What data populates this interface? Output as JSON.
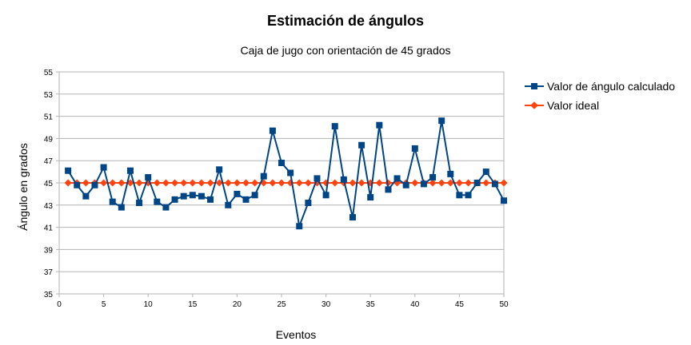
{
  "chart_data": {
    "type": "line",
    "title": "Estimación de ángulos",
    "subtitle": "Caja de jugo con orientación de 45 grados",
    "xlabel": "Eventos",
    "ylabel": "Ángulo en grados",
    "xlim": [
      0,
      50
    ],
    "ylim": [
      35,
      55
    ],
    "xticks": [
      0,
      5,
      10,
      15,
      20,
      25,
      30,
      35,
      40,
      45,
      50
    ],
    "yticks": [
      35,
      37,
      39,
      41,
      43,
      45,
      47,
      49,
      51,
      53,
      55
    ],
    "grid": true,
    "legend_position": "right",
    "series": [
      {
        "name": "Valor de ángulo calculado",
        "color": "#004586",
        "marker": "square",
        "x": [
          1,
          2,
          3,
          4,
          5,
          6,
          7,
          8,
          9,
          10,
          11,
          12,
          13,
          14,
          15,
          16,
          17,
          18,
          19,
          20,
          21,
          22,
          23,
          24,
          25,
          26,
          27,
          28,
          29,
          30,
          31,
          32,
          33,
          34,
          35,
          36,
          37,
          38,
          39,
          40,
          41,
          42,
          43,
          44,
          45,
          46,
          47,
          48,
          49,
          50
        ],
        "values": [
          46.1,
          44.8,
          43.8,
          44.8,
          46.4,
          43.3,
          42.8,
          46.1,
          43.2,
          45.5,
          43.3,
          42.8,
          43.5,
          43.8,
          43.9,
          43.8,
          43.5,
          46.2,
          43.0,
          44.0,
          43.5,
          43.9,
          45.6,
          49.7,
          46.8,
          45.9,
          41.1,
          43.2,
          45.4,
          43.9,
          50.1,
          45.3,
          41.9,
          48.4,
          43.7,
          50.2,
          44.4,
          45.4,
          44.8,
          48.1,
          44.9,
          45.5,
          50.6,
          45.8,
          43.9,
          43.9,
          45.0,
          46.0,
          44.9,
          43.4
        ]
      },
      {
        "name": "Valor ideal",
        "color": "#ff420e",
        "marker": "diamond",
        "x": [
          1,
          2,
          3,
          4,
          5,
          6,
          7,
          8,
          9,
          10,
          11,
          12,
          13,
          14,
          15,
          16,
          17,
          18,
          19,
          20,
          21,
          22,
          23,
          24,
          25,
          26,
          27,
          28,
          29,
          30,
          31,
          32,
          33,
          34,
          35,
          36,
          37,
          38,
          39,
          40,
          41,
          42,
          43,
          44,
          45,
          46,
          47,
          48,
          49,
          50
        ],
        "values": [
          45,
          45,
          45,
          45,
          45,
          45,
          45,
          45,
          45,
          45,
          45,
          45,
          45,
          45,
          45,
          45,
          45,
          45,
          45,
          45,
          45,
          45,
          45,
          45,
          45,
          45,
          45,
          45,
          45,
          45,
          45,
          45,
          45,
          45,
          45,
          45,
          45,
          45,
          45,
          45,
          45,
          45,
          45,
          45,
          45,
          45,
          45,
          45,
          45,
          45
        ]
      }
    ]
  }
}
